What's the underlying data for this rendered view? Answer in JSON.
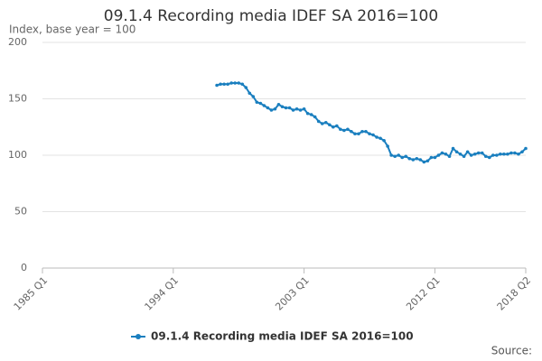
{
  "chart_data": {
    "type": "line",
    "title": "09.1.4 Recording media IDEF SA 2016=100",
    "subtitle": "Index, base year = 100",
    "source": "Source:",
    "categories": [
      "1985 Q1",
      null,
      null,
      null,
      null,
      null,
      null,
      null,
      null,
      null,
      null,
      null,
      null,
      null,
      null,
      null,
      null,
      null,
      null,
      null,
      null,
      null,
      null,
      null,
      null,
      null,
      null,
      null,
      null,
      null,
      null,
      null,
      null,
      null,
      null,
      null,
      "1994 Q1",
      null,
      null,
      null,
      null,
      null,
      null,
      null,
      null,
      null,
      null,
      null,
      null,
      null,
      null,
      null,
      null,
      null,
      null,
      null,
      null,
      null,
      null,
      null,
      null,
      null,
      null,
      null,
      null,
      null,
      null,
      null,
      null,
      null,
      null,
      null,
      "2003 Q1",
      null,
      null,
      null,
      null,
      null,
      null,
      null,
      null,
      null,
      null,
      null,
      null,
      null,
      null,
      null,
      null,
      null,
      null,
      null,
      null,
      null,
      null,
      null,
      null,
      null,
      null,
      null,
      null,
      null,
      null,
      null,
      null,
      null,
      null,
      null,
      "2012 Q1",
      null,
      null,
      null,
      null,
      null,
      null,
      null,
      null,
      null,
      null,
      null,
      null,
      null,
      null,
      null,
      null,
      null,
      null,
      null,
      null,
      null,
      null,
      null,
      null,
      "2018 Q2"
    ],
    "series": [
      {
        "name": "09.1.4 Recording media IDEF SA 2016=100",
        "color": "#1a7fbf",
        "values": [
          null,
          null,
          null,
          null,
          null,
          null,
          null,
          null,
          null,
          null,
          null,
          null,
          null,
          null,
          null,
          null,
          null,
          null,
          null,
          null,
          null,
          null,
          null,
          null,
          null,
          null,
          null,
          null,
          null,
          null,
          null,
          null,
          null,
          null,
          null,
          null,
          null,
          null,
          null,
          null,
          null,
          null,
          null,
          null,
          null,
          null,
          null,
          null,
          162,
          163,
          163,
          163,
          164,
          164,
          164,
          163,
          160,
          155,
          152,
          147,
          146,
          144,
          142,
          140,
          141,
          145,
          143,
          142,
          142,
          140,
          141,
          140,
          141,
          137,
          136,
          134,
          130,
          128,
          129,
          127,
          125,
          126,
          123,
          122,
          123,
          121,
          119,
          119,
          121,
          121,
          119,
          118,
          116,
          115,
          113,
          108,
          100,
          99,
          100,
          98,
          99,
          97,
          96,
          97,
          96,
          94,
          95,
          98,
          98,
          100,
          102,
          101,
          99,
          106,
          103,
          101,
          99,
          103,
          100,
          101,
          102,
          102,
          99,
          98,
          100,
          100,
          101,
          101,
          101,
          102,
          102,
          101,
          103,
          106
        ]
      }
    ],
    "ylim": [
      0,
      200
    ],
    "yticks": [
      0,
      50,
      100,
      150,
      200
    ],
    "grid": true,
    "legend": "bottom"
  }
}
